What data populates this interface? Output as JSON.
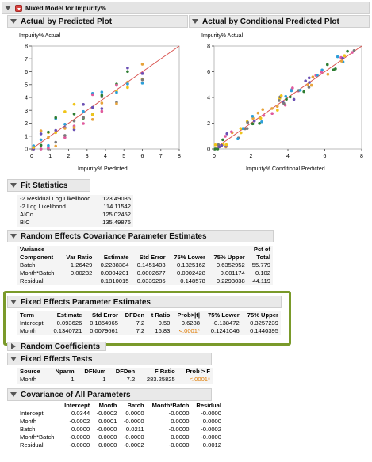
{
  "report": {
    "title": "Mixed Model for Impurity%",
    "plot1": {
      "title": "Actual by Predicted Plot",
      "ylabel": "Impurity% Actual",
      "xlabel": "Impurity% Predicted",
      "xticks": [
        "0",
        "1",
        "2",
        "3",
        "4",
        "5",
        "6",
        "7",
        "8"
      ],
      "yticks": [
        "0",
        "1",
        "2",
        "3",
        "4",
        "5",
        "6",
        "7",
        "8"
      ]
    },
    "plot2": {
      "title": "Actual by Conditional Predicted Plot",
      "ylabel": "Impurity% Actual",
      "xlabel": "Impurity% Conditional Predicted",
      "xticks": [
        "0",
        "2",
        "4",
        "6",
        "8"
      ],
      "yticks": [
        "0",
        "2",
        "4",
        "6",
        "8"
      ]
    },
    "fit_stats": {
      "title": "Fit Statistics",
      "rows": [
        [
          "-2 Residual Log Likelihood",
          "123.49086"
        ],
        [
          "-2 Log Likelihood",
          "114.11542"
        ],
        [
          "AICc",
          "125.02452"
        ],
        [
          "BIC",
          "135.49876"
        ]
      ]
    },
    "random_effects": {
      "title": "Random Effects Covariance Parameter Estimates",
      "header_top": [
        "Variance",
        "",
        "",
        "",
        "",
        "",
        "Pct of"
      ],
      "header": [
        "Component",
        "Var Ratio",
        "Estimate",
        "Std Error",
        "75% Lower",
        "75% Upper",
        "Total"
      ],
      "rows": [
        [
          "Batch",
          "1.26429",
          "0.2288384",
          "0.1451403",
          "0.1325162",
          "0.6352952",
          "55.779"
        ],
        [
          "Month*Batch",
          "0.00232",
          "0.0004201",
          "0.0002677",
          "0.0002428",
          "0.001174",
          "0.102"
        ],
        [
          "Residual",
          "",
          "0.1810015",
          "0.0339286",
          "0.148578",
          "0.2293038",
          "44.119"
        ]
      ]
    },
    "fixed_effects": {
      "title": "Fixed Effects Parameter Estimates",
      "header": [
        "Term",
        "Estimate",
        "Std Error",
        "DFDen",
        "t Ratio",
        "Prob>|t|",
        "75% Lower",
        "75% Upper"
      ],
      "rows": [
        [
          "Intercept",
          "0.093626",
          "0.1854965",
          "7.2",
          "0.50",
          "0.6288",
          "-0.138472",
          "0.3257239"
        ],
        [
          "Month",
          "0.1340721",
          "0.0079661",
          "7.2",
          "16.83",
          "<.0001*",
          "0.1241046",
          "0.1440395"
        ]
      ]
    },
    "random_coefficients": {
      "title": "Random Coefficients"
    },
    "fixed_tests": {
      "title": "Fixed Effects Tests",
      "header": [
        "Source",
        "Nparm",
        "DFNum",
        "DFDen",
        "F Ratio",
        "Prob > F"
      ],
      "rows": [
        [
          "Month",
          "1",
          "1",
          "7.2",
          "283.25825",
          "<.0001*"
        ]
      ]
    },
    "covariance": {
      "title": "Covariance of All Parameters",
      "header": [
        "",
        "Intercept",
        "Month",
        "Batch",
        "Month*Batch",
        "Residual"
      ],
      "rows": [
        [
          "Intercept",
          "0.0344",
          "-0.0002",
          "0.0000",
          "-0.0000",
          "-0.0000"
        ],
        [
          "Month",
          "-0.0002",
          "0.0001",
          "-0.0000",
          "0.0000",
          "0.0000"
        ],
        [
          "Batch",
          "0.0000",
          "-0.0000",
          "0.0211",
          "-0.0000",
          "-0.0002"
        ],
        [
          "Month*Batch",
          "-0.0000",
          "0.0000",
          "-0.0000",
          "0.0000",
          "-0.0000"
        ],
        [
          "Residual",
          "-0.0000",
          "0.0000",
          "-0.0002",
          "-0.0000",
          "0.0012"
        ]
      ]
    }
  },
  "colors": {
    "series": [
      "#e8a33a",
      "#2c9fd9",
      "#2e7d32",
      "#e05a9d",
      "#6a4fb3",
      "#f0c419",
      "#7a7a7a"
    ],
    "fit_line": "#d9534f",
    "highlight": "#7a9a2a"
  }
}
